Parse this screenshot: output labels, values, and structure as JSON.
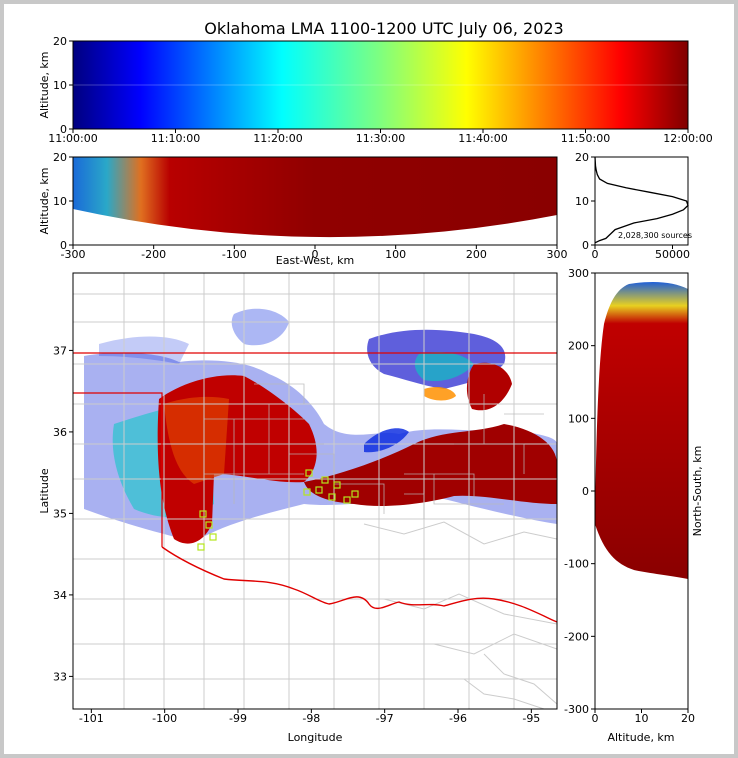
{
  "chart_data": {
    "type": "scatter",
    "title": "Oklahoma LMA 1100-1200 UTC July 06, 2023",
    "colormap": "jet (time)",
    "panels": {
      "time_height": {
        "ylabel": "Altitude, km",
        "xlim": [
          "11:00:00",
          "12:00:00"
        ],
        "ylim": [
          0,
          20
        ],
        "xticks": [
          "11:00:00",
          "11:10:00",
          "11:20:00",
          "11:30:00",
          "11:40:00",
          "11:50:00",
          "12:00:00"
        ],
        "yticks": [
          "0",
          "10",
          "20"
        ]
      },
      "ew_height": {
        "xlabel": "East-West, km",
        "ylabel": "Altitude, km",
        "xlim": [
          -300,
          300
        ],
        "ylim": [
          0,
          20
        ],
        "xticks": [
          "-300",
          "-200",
          "-100",
          "0",
          "100",
          "200",
          "300"
        ],
        "yticks": [
          "0",
          "10",
          "20"
        ]
      },
      "histogram": {
        "xlim": [
          0,
          60000
        ],
        "ylim": [
          0,
          20
        ],
        "xticks": [
          "0",
          "50000"
        ],
        "yticks": [
          "0",
          "10",
          "20"
        ],
        "annotation": "2,028,300 sources",
        "profile": [
          {
            "alt": 0.5,
            "count": 0
          },
          {
            "alt": 1,
            "count": 3000
          },
          {
            "alt": 1.5,
            "count": 7000
          },
          {
            "alt": 2.5,
            "count": 10000
          },
          {
            "alt": 3.5,
            "count": 13000
          },
          {
            "alt": 5,
            "count": 25000
          },
          {
            "alt": 6,
            "count": 40000
          },
          {
            "alt": 7,
            "count": 50000
          },
          {
            "alt": 8,
            "count": 57000
          },
          {
            "alt": 9,
            "count": 60000
          },
          {
            "alt": 10,
            "count": 59000
          },
          {
            "alt": 11,
            "count": 50000
          },
          {
            "alt": 12,
            "count": 35000
          },
          {
            "alt": 13,
            "count": 20000
          },
          {
            "alt": 14,
            "count": 8000
          },
          {
            "alt": 15,
            "count": 3000
          },
          {
            "alt": 16,
            "count": 1500
          },
          {
            "alt": 17,
            "count": 800
          },
          {
            "alt": 18,
            "count": 300
          },
          {
            "alt": 20,
            "count": 0
          }
        ]
      },
      "map": {
        "xlabel": "Longitude",
        "ylabel": "Latitude",
        "xlim": [
          -101.25,
          -94.65
        ],
        "ylim": [
          32.6,
          37.95
        ],
        "xticks": [
          "-101",
          "-100",
          "-99",
          "-98",
          "-97",
          "-96",
          "-95"
        ],
        "yticks": [
          "33",
          "34",
          "35",
          "36",
          "37"
        ]
      },
      "ns_height": {
        "xlabel": "Altitude, km",
        "ylabel": "North-South, km",
        "xlim": [
          0,
          20
        ],
        "ylim": [
          -300,
          300
        ],
        "xticks": [
          "0",
          "10",
          "20"
        ],
        "yticks": [
          "-300",
          "-200",
          "-100",
          "0",
          "100",
          "200",
          "300"
        ]
      }
    }
  }
}
